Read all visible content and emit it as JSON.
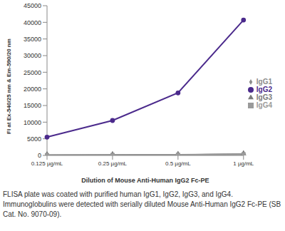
{
  "chart_data": {
    "type": "line",
    "x_label": "Dilution of Mouse Anti-Human IgG2 Fc-PE",
    "y_label": "FI at Ex-540/25 nm & Em-590/20 nm",
    "caption": "FLISA plate was coated with purified human IgG1, IgG2, IgG3, and IgG4.  Immunoglobulins were detected with serially diluted Mouse Anti-Human IgG2 Fc-PE (SB Cat. No. 9070-09).",
    "categories": [
      "0.125 µg/mL",
      "0.25 µg/mL",
      "0.5 µg/mL",
      "1 µg/mL"
    ],
    "series": [
      {
        "name": "IgG1",
        "color": "#8c8c8c",
        "marker": "diamond",
        "values": [
          100,
          150,
          200,
          400
        ]
      },
      {
        "name": "IgG2",
        "color": "#4b2a8c",
        "marker": "circle",
        "values": [
          5500,
          10500,
          18800,
          40700
        ]
      },
      {
        "name": "IgG3",
        "color": "#7a7a7a",
        "marker": "triangle",
        "values": [
          80,
          120,
          180,
          350
        ]
      },
      {
        "name": "IgG4",
        "color": "#9a9a9a",
        "marker": "square",
        "values": [
          60,
          100,
          150,
          300
        ]
      }
    ],
    "ylim": [
      0,
      45000
    ],
    "yticks": [
      0,
      5000,
      10000,
      15000,
      20000,
      25000,
      30000,
      35000,
      40000,
      45000
    ],
    "grid": false,
    "legend": "right"
  }
}
